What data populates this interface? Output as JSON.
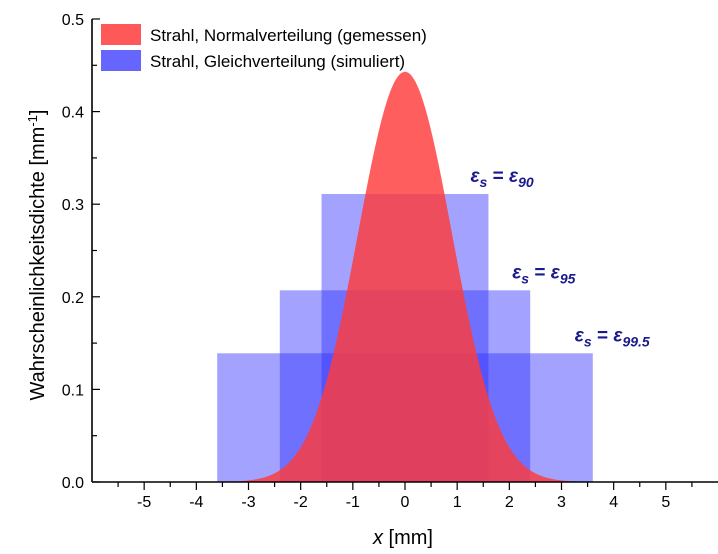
{
  "chart_data": {
    "type": "area",
    "xlabel_var": "x",
    "xlabel_unit": " [mm]",
    "ylabel": "Wahrscheinlichkeitsdichte [mm",
    "ylabel_sup": "-1",
    "ylabel_close": "]",
    "xlim": [
      -6,
      6
    ],
    "ylim": [
      0,
      0.5
    ],
    "x_ticks": [
      -5,
      -4,
      -3,
      -2,
      -1,
      0,
      1,
      2,
      3,
      4,
      5
    ],
    "x_tick_labels": [
      "-5",
      "-4",
      "-3",
      "-2",
      "-1",
      "0",
      "1",
      "2",
      "3",
      "4",
      "5"
    ],
    "y_ticks": [
      0,
      0.1,
      0.2,
      0.3,
      0.4,
      0.5
    ],
    "y_tick_labels": [
      "0.0",
      "0.1",
      "0.2",
      "0.3",
      "0.4",
      "0.5"
    ],
    "legend_position": "top-left",
    "series": [
      {
        "name": "Strahl, Normalverteilung (gemessen)",
        "kind": "normal",
        "mean": 0,
        "sigma": 0.9,
        "peak": 0.443,
        "color": "#ff3b3b"
      },
      {
        "name": "Strahl, Gleichverteilung (simuliert)",
        "kind": "uniform",
        "color": "#3333ff",
        "boxes": [
          {
            "x": [
              -1.6,
              1.6
            ],
            "y": 0.311,
            "label_sub": "90"
          },
          {
            "x": [
              -2.4,
              2.4
            ],
            "y": 0.207,
            "label_sub": "95"
          },
          {
            "x": [
              -3.6,
              3.6
            ],
            "y": 0.139,
            "label_sub": "99.5"
          }
        ]
      }
    ],
    "annotation_lhs": "ε",
    "annotation_lhs_sub": "s",
    "annotation_eq": " = ",
    "annotation_rhs": "ε",
    "annotation_color": "#1a1a8c"
  }
}
